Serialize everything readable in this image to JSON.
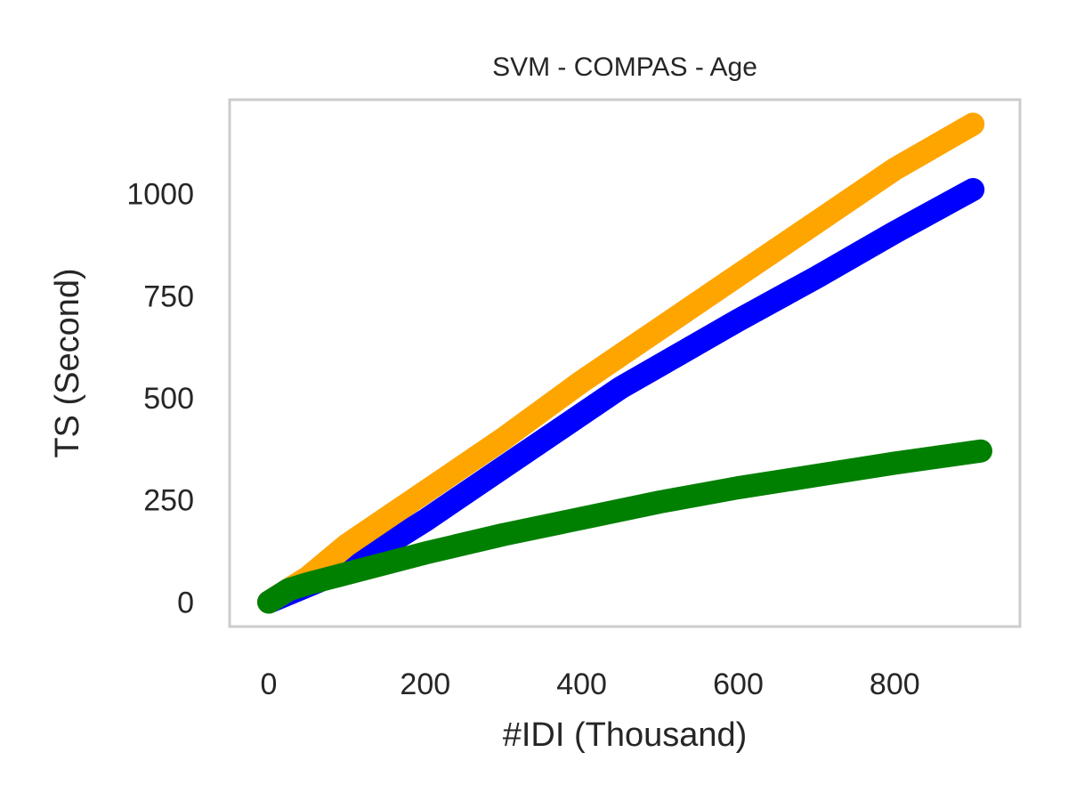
{
  "chart_data": {
    "type": "line",
    "title": "SVM - COMPAS - Age",
    "xlabel": "#IDI (Thousand)",
    "ylabel": "TS (Second)",
    "xlim": [
      -50,
      960
    ],
    "ylim": [
      -60,
      1230
    ],
    "grid": false,
    "x_ticks": [
      0,
      200,
      400,
      600,
      800
    ],
    "y_ticks": [
      0,
      250,
      500,
      750,
      1000
    ],
    "series": [
      {
        "color": "#0000ff",
        "x": [
          0,
          50,
          100,
          200,
          300,
          400,
          450,
          500,
          600,
          700,
          800,
          900
        ],
        "y": [
          0,
          40,
          80,
          200,
          330,
          460,
          525,
          580,
          690,
          795,
          905,
          1010
        ]
      },
      {
        "color": "#ffa500",
        "x": [
          0,
          50,
          100,
          200,
          300,
          400,
          500,
          600,
          700,
          800,
          900
        ],
        "y": [
          0,
          60,
          140,
          270,
          400,
          540,
          670,
          800,
          930,
          1060,
          1170
        ]
      },
      {
        "color": "#008000",
        "x": [
          0,
          25,
          50,
          100,
          200,
          300,
          400,
          500,
          600,
          700,
          800,
          910
        ],
        "y": [
          0,
          30,
          45,
          70,
          120,
          165,
          205,
          245,
          280,
          310,
          340,
          370
        ]
      }
    ]
  }
}
